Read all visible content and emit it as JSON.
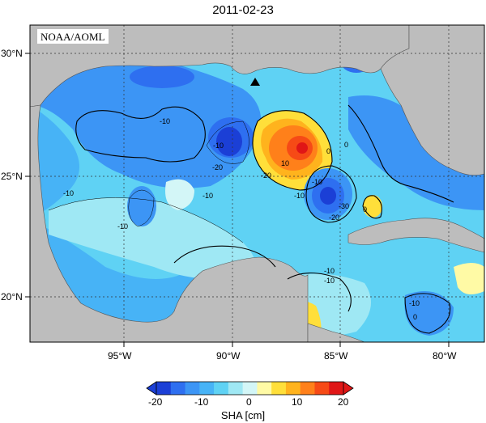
{
  "title": "2011-02-23",
  "watermark": "NOAA/AOML",
  "lon_ticks": [
    {
      "value": -95,
      "label": "95°W"
    },
    {
      "value": -90,
      "label": "90°W"
    },
    {
      "value": -85,
      "label": "85°W"
    },
    {
      "value": -80,
      "label": "80°W"
    }
  ],
  "lat_ticks": [
    {
      "value": 30,
      "label": "30°N"
    },
    {
      "value": 25,
      "label": "25°N"
    },
    {
      "value": 20,
      "label": "20°N"
    }
  ],
  "colorbar": {
    "title": "SHA [cm]",
    "ticks": [
      "-20",
      "-10",
      "0",
      "10",
      "20"
    ],
    "colors": [
      "#1b3fd6",
      "#2e6ff0",
      "#3c95f5",
      "#47b3f6",
      "#5fd2f4",
      "#9fe8f4",
      "#d3f6f7",
      "#fffaa5",
      "#ffdf3a",
      "#ffb31d",
      "#ff801a",
      "#f64a16",
      "#e01616"
    ]
  },
  "contour_labels": [
    "-10",
    "-10",
    "-10",
    "-10",
    "-10",
    "-20",
    "-20",
    "-10",
    "0",
    "10",
    "-10",
    "-20",
    "-30",
    "0",
    "0",
    "-10",
    "0",
    "-10",
    "-10"
  ],
  "colors": {
    "land": "#bdbdbd",
    "ocean_base": "#5fd2f4"
  }
}
